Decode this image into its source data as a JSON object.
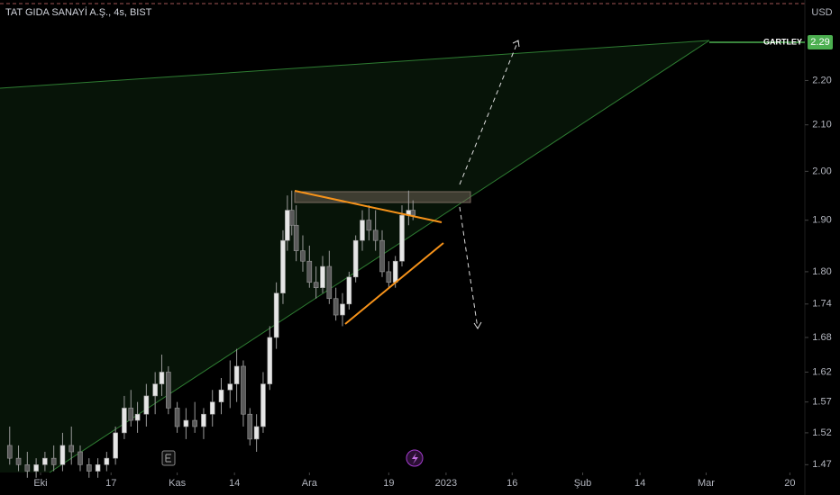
{
  "chart_data": {
    "type": "candlestick",
    "title": "TAT GIDA SANAYİ A.Ş., 4s, BIST",
    "currency": "USD",
    "log_scale": true,
    "up_color": "#e6e6e6",
    "down_color": "#5a5a5a",
    "x": [
      -7,
      -5,
      -3,
      -1,
      1,
      3,
      5,
      7,
      9,
      11,
      13,
      15,
      17,
      19,
      20.5,
      22,
      24,
      26,
      27.5,
      29,
      31,
      33,
      35,
      37,
      39,
      41,
      43,
      44.5,
      46,
      47.5,
      49,
      50.5,
      52,
      53.5,
      55,
      56,
      57,
      58,
      59.5,
      61,
      62.5,
      64,
      65.5,
      67,
      68.5,
      70,
      71.5,
      73,
      74.5,
      76,
      77.5,
      79,
      80.5,
      82,
      83.5,
      84.5
    ],
    "open": [
      1.5,
      1.48,
      1.47,
      1.46,
      1.47,
      1.48,
      1.47,
      1.5,
      1.49,
      1.47,
      1.46,
      1.47,
      1.48,
      1.52,
      1.56,
      1.54,
      1.55,
      1.58,
      1.6,
      1.62,
      1.56,
      1.53,
      1.54,
      1.53,
      1.55,
      1.57,
      1.59,
      1.6,
      1.63,
      1.55,
      1.51,
      1.53,
      1.6,
      1.68,
      1.76,
      1.86,
      1.92,
      1.89,
      1.84,
      1.82,
      1.78,
      1.77,
      1.81,
      1.75,
      1.72,
      1.74,
      1.79,
      1.86,
      1.9,
      1.88,
      1.86,
      1.8,
      1.78,
      1.82,
      1.91,
      1.92
    ],
    "high": [
      1.53,
      1.5,
      1.49,
      1.48,
      1.49,
      1.5,
      1.52,
      1.53,
      1.5,
      1.48,
      1.48,
      1.49,
      1.53,
      1.58,
      1.59,
      1.57,
      1.6,
      1.62,
      1.65,
      1.63,
      1.57,
      1.56,
      1.57,
      1.56,
      1.59,
      1.61,
      1.64,
      1.66,
      1.64,
      1.56,
      1.55,
      1.62,
      1.7,
      1.78,
      1.88,
      1.95,
      1.96,
      1.93,
      1.87,
      1.85,
      1.81,
      1.83,
      1.84,
      1.77,
      1.76,
      1.8,
      1.87,
      1.92,
      1.93,
      1.92,
      1.88,
      1.82,
      1.83,
      1.93,
      1.96,
      1.94
    ],
    "low": [
      1.47,
      1.46,
      1.45,
      1.45,
      1.46,
      1.46,
      1.46,
      1.47,
      1.46,
      1.45,
      1.45,
      1.46,
      1.47,
      1.51,
      1.53,
      1.52,
      1.53,
      1.55,
      1.58,
      1.55,
      1.52,
      1.51,
      1.52,
      1.51,
      1.53,
      1.55,
      1.56,
      1.57,
      1.53,
      1.5,
      1.49,
      1.52,
      1.59,
      1.66,
      1.74,
      1.84,
      1.87,
      1.82,
      1.8,
      1.77,
      1.75,
      1.76,
      1.74,
      1.71,
      1.7,
      1.73,
      1.78,
      1.84,
      1.86,
      1.84,
      1.79,
      1.77,
      1.77,
      1.81,
      1.89,
      1.9
    ],
    "close": [
      1.48,
      1.47,
      1.46,
      1.47,
      1.48,
      1.47,
      1.5,
      1.49,
      1.47,
      1.46,
      1.47,
      1.48,
      1.52,
      1.56,
      1.54,
      1.55,
      1.58,
      1.6,
      1.62,
      1.56,
      1.53,
      1.54,
      1.53,
      1.55,
      1.57,
      1.59,
      1.6,
      1.63,
      1.55,
      1.51,
      1.53,
      1.6,
      1.68,
      1.76,
      1.86,
      1.92,
      1.89,
      1.84,
      1.82,
      1.78,
      1.77,
      1.81,
      1.75,
      1.72,
      1.74,
      1.79,
      1.86,
      1.9,
      1.88,
      1.86,
      1.8,
      1.78,
      1.82,
      1.91,
      1.92,
      1.91
    ],
    "xlim": [
      -9.2,
      173.4
    ],
    "xticks": [
      {
        "value": 0,
        "label": "Eki"
      },
      {
        "value": 16,
        "label": "17"
      },
      {
        "value": 31,
        "label": "Kas"
      },
      {
        "value": 44,
        "label": "14"
      },
      {
        "value": 61,
        "label": "Ara"
      },
      {
        "value": 79,
        "label": "19"
      },
      {
        "value": 92,
        "label": "2023"
      },
      {
        "value": 107,
        "label": "16"
      },
      {
        "value": 123,
        "label": "Şub"
      },
      {
        "value": 136,
        "label": "14"
      },
      {
        "value": 151,
        "label": "Mar"
      },
      {
        "value": 170,
        "label": "20"
      }
    ],
    "ylim": [
      1.458,
      2.394
    ],
    "yticks": [
      1.47,
      1.52,
      1.57,
      1.62,
      1.68,
      1.74,
      {
        "value": 1.8,
        "label": "1.80"
      },
      {
        "value": 1.9,
        "label": "1.90"
      },
      {
        "value": 2,
        "label": "2.00"
      },
      {
        "value": 2.1,
        "label": "2.10"
      },
      {
        "value": 2.2,
        "label": "2.20"
      }
    ],
    "price_line": {
      "name": "GARTLEY",
      "value": 2.29,
      "color": "#4caf50"
    }
  }
}
